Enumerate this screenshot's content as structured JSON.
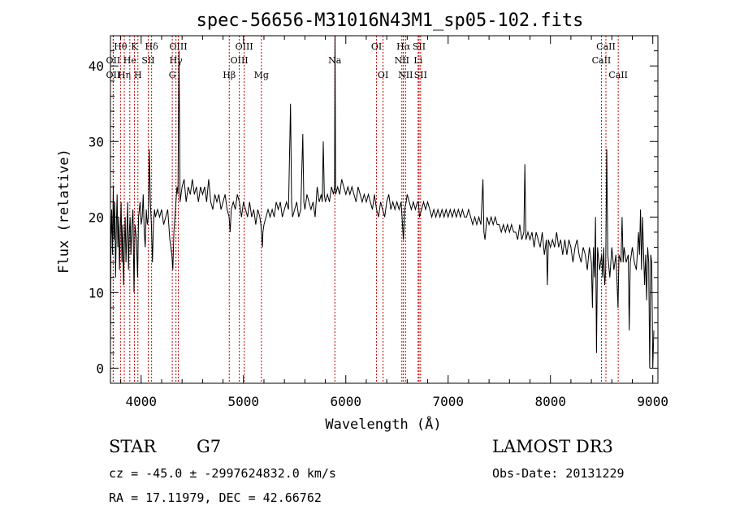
{
  "chart_data": {
    "type": "line",
    "title": "spec-56656-M31016N43M1_sp05-102.fits",
    "xlabel": "Wavelength (Å)",
    "ylabel": "Flux (relative)",
    "xlim": [
      3700,
      9050
    ],
    "ylim": [
      -2,
      44
    ],
    "xticks": [
      4000,
      5000,
      6000,
      7000,
      8000,
      9000
    ],
    "yticks": [
      0,
      10,
      20,
      30,
      40
    ],
    "grid": false,
    "spectrum": [
      [
        3700,
        2
      ],
      [
        3705,
        17
      ],
      [
        3712,
        21
      ],
      [
        3720,
        15
      ],
      [
        3728,
        24
      ],
      [
        3735,
        17
      ],
      [
        3742,
        22
      ],
      [
        3750,
        12
      ],
      [
        3758,
        19
      ],
      [
        3765,
        23
      ],
      [
        3772,
        16
      ],
      [
        3780,
        20
      ],
      [
        3788,
        13
      ],
      [
        3796,
        18
      ],
      [
        3804,
        22
      ],
      [
        3812,
        14
      ],
      [
        3820,
        19
      ],
      [
        3828,
        11
      ],
      [
        3836,
        16
      ],
      [
        3844,
        20
      ],
      [
        3852,
        14
      ],
      [
        3860,
        18
      ],
      [
        3868,
        22
      ],
      [
        3876,
        13
      ],
      [
        3884,
        18
      ],
      [
        3892,
        20
      ],
      [
        3900,
        15
      ],
      [
        3910,
        19
      ],
      [
        3920,
        21
      ],
      [
        3930,
        10
      ],
      [
        3940,
        19
      ],
      [
        3955,
        17
      ],
      [
        3965,
        12
      ],
      [
        3975,
        20
      ],
      [
        3990,
        22
      ],
      [
        4000,
        19
      ],
      [
        4010,
        20
      ],
      [
        4020,
        23
      ],
      [
        4030,
        18
      ],
      [
        4040,
        16
      ],
      [
        4050,
        21
      ],
      [
        4060,
        19
      ],
      [
        4070,
        20
      ],
      [
        4080,
        29
      ],
      [
        4090,
        22
      ],
      [
        4100,
        19
      ],
      [
        4110,
        14
      ],
      [
        4120,
        19
      ],
      [
        4130,
        21
      ],
      [
        4140,
        20
      ],
      [
        4160,
        21
      ],
      [
        4180,
        20
      ],
      [
        4200,
        21
      ],
      [
        4220,
        19
      ],
      [
        4240,
        20
      ],
      [
        4260,
        21
      ],
      [
        4280,
        17
      ],
      [
        4300,
        15
      ],
      [
        4310,
        13
      ],
      [
        4320,
        18
      ],
      [
        4330,
        20
      ],
      [
        4340,
        22
      ],
      [
        4350,
        24
      ],
      [
        4360,
        23
      ],
      [
        4370,
        42
      ],
      [
        4380,
        22
      ],
      [
        4400,
        24
      ],
      [
        4420,
        25
      ],
      [
        4440,
        22
      ],
      [
        4460,
        24
      ],
      [
        4480,
        23
      ],
      [
        4500,
        25
      ],
      [
        4520,
        23
      ],
      [
        4540,
        24
      ],
      [
        4560,
        22
      ],
      [
        4580,
        24
      ],
      [
        4600,
        23
      ],
      [
        4620,
        24
      ],
      [
        4640,
        22
      ],
      [
        4660,
        25
      ],
      [
        4680,
        22
      ],
      [
        4700,
        21
      ],
      [
        4720,
        23
      ],
      [
        4740,
        22
      ],
      [
        4760,
        23
      ],
      [
        4780,
        21
      ],
      [
        4800,
        22
      ],
      [
        4820,
        23
      ],
      [
        4840,
        21
      ],
      [
        4860,
        20
      ],
      [
        4870,
        18
      ],
      [
        4880,
        21
      ],
      [
        4900,
        22
      ],
      [
        4920,
        21
      ],
      [
        4940,
        23
      ],
      [
        4960,
        22
      ],
      [
        4980,
        20
      ],
      [
        5000,
        22
      ],
      [
        5020,
        21
      ],
      [
        5040,
        20
      ],
      [
        5060,
        22
      ],
      [
        5080,
        20
      ],
      [
        5100,
        21
      ],
      [
        5120,
        19
      ],
      [
        5140,
        21
      ],
      [
        5160,
        20
      ],
      [
        5170,
        19
      ],
      [
        5180,
        17
      ],
      [
        5185,
        16
      ],
      [
        5190,
        18
      ],
      [
        5200,
        19
      ],
      [
        5220,
        20
      ],
      [
        5240,
        21
      ],
      [
        5260,
        20
      ],
      [
        5280,
        21
      ],
      [
        5300,
        20
      ],
      [
        5320,
        22
      ],
      [
        5340,
        21
      ],
      [
        5360,
        22
      ],
      [
        5380,
        20
      ],
      [
        5400,
        21
      ],
      [
        5420,
        22
      ],
      [
        5440,
        21
      ],
      [
        5460,
        35
      ],
      [
        5470,
        22
      ],
      [
        5480,
        20
      ],
      [
        5500,
        21
      ],
      [
        5520,
        22
      ],
      [
        5540,
        20
      ],
      [
        5560,
        21
      ],
      [
        5580,
        31
      ],
      [
        5590,
        22
      ],
      [
        5600,
        21
      ],
      [
        5620,
        23
      ],
      [
        5640,
        22
      ],
      [
        5660,
        21
      ],
      [
        5680,
        22
      ],
      [
        5700,
        20
      ],
      [
        5720,
        24
      ],
      [
        5740,
        22
      ],
      [
        5760,
        23
      ],
      [
        5770,
        22
      ],
      [
        5780,
        30
      ],
      [
        5790,
        23
      ],
      [
        5800,
        22
      ],
      [
        5820,
        23
      ],
      [
        5840,
        22
      ],
      [
        5860,
        24
      ],
      [
        5880,
        23
      ],
      [
        5890,
        24
      ],
      [
        5895,
        44
      ],
      [
        5900,
        23
      ],
      [
        5920,
        24
      ],
      [
        5940,
        23
      ],
      [
        5960,
        25
      ],
      [
        5980,
        24
      ],
      [
        6000,
        23
      ],
      [
        6020,
        24
      ],
      [
        6040,
        23
      ],
      [
        6060,
        24
      ],
      [
        6080,
        23
      ],
      [
        6100,
        22
      ],
      [
        6120,
        24
      ],
      [
        6140,
        23
      ],
      [
        6160,
        22
      ],
      [
        6180,
        23
      ],
      [
        6200,
        22
      ],
      [
        6220,
        23
      ],
      [
        6240,
        22
      ],
      [
        6260,
        21
      ],
      [
        6280,
        23
      ],
      [
        6300,
        21
      ],
      [
        6320,
        20
      ],
      [
        6340,
        22
      ],
      [
        6360,
        21
      ],
      [
        6380,
        20
      ],
      [
        6400,
        22
      ],
      [
        6420,
        23
      ],
      [
        6440,
        21
      ],
      [
        6460,
        22
      ],
      [
        6480,
        21
      ],
      [
        6500,
        22
      ],
      [
        6520,
        21
      ],
      [
        6540,
        22
      ],
      [
        6550,
        20
      ],
      [
        6563,
        17
      ],
      [
        6575,
        21
      ],
      [
        6590,
        22
      ],
      [
        6600,
        23
      ],
      [
        6620,
        22
      ],
      [
        6640,
        21
      ],
      [
        6660,
        22
      ],
      [
        6680,
        21
      ],
      [
        6700,
        22
      ],
      [
        6710,
        22
      ],
      [
        6720,
        20
      ],
      [
        6740,
        21
      ],
      [
        6760,
        22
      ],
      [
        6780,
        21
      ],
      [
        6800,
        22
      ],
      [
        6820,
        21
      ],
      [
        6840,
        20
      ],
      [
        6860,
        21
      ],
      [
        6880,
        20
      ],
      [
        6900,
        21
      ],
      [
        6920,
        20
      ],
      [
        6940,
        21
      ],
      [
        6960,
        20
      ],
      [
        6980,
        21
      ],
      [
        7000,
        20
      ],
      [
        7020,
        21
      ],
      [
        7040,
        20
      ],
      [
        7060,
        21
      ],
      [
        7080,
        20
      ],
      [
        7100,
        21
      ],
      [
        7120,
        20
      ],
      [
        7140,
        21
      ],
      [
        7160,
        20
      ],
      [
        7180,
        20
      ],
      [
        7200,
        21
      ],
      [
        7220,
        20
      ],
      [
        7240,
        19
      ],
      [
        7260,
        20
      ],
      [
        7280,
        19
      ],
      [
        7300,
        20
      ],
      [
        7320,
        19
      ],
      [
        7340,
        25
      ],
      [
        7350,
        18
      ],
      [
        7360,
        17
      ],
      [
        7380,
        20
      ],
      [
        7400,
        19
      ],
      [
        7420,
        20
      ],
      [
        7440,
        19
      ],
      [
        7460,
        20
      ],
      [
        7480,
        19
      ],
      [
        7500,
        19
      ],
      [
        7520,
        18
      ],
      [
        7540,
        19
      ],
      [
        7560,
        18
      ],
      [
        7580,
        19
      ],
      [
        7600,
        18
      ],
      [
        7620,
        19
      ],
      [
        7640,
        18
      ],
      [
        7660,
        18
      ],
      [
        7680,
        17
      ],
      [
        7700,
        19
      ],
      [
        7720,
        17
      ],
      [
        7740,
        18
      ],
      [
        7750,
        27
      ],
      [
        7760,
        17
      ],
      [
        7780,
        18
      ],
      [
        7800,
        17
      ],
      [
        7820,
        18
      ],
      [
        7840,
        16
      ],
      [
        7860,
        18
      ],
      [
        7880,
        17
      ],
      [
        7900,
        16
      ],
      [
        7920,
        18
      ],
      [
        7940,
        15
      ],
      [
        7960,
        17
      ],
      [
        7970,
        11
      ],
      [
        7980,
        17
      ],
      [
        8000,
        16
      ],
      [
        8020,
        17
      ],
      [
        8040,
        16
      ],
      [
        8060,
        18
      ],
      [
        8080,
        16
      ],
      [
        8100,
        17
      ],
      [
        8120,
        15
      ],
      [
        8140,
        17
      ],
      [
        8160,
        15
      ],
      [
        8180,
        17
      ],
      [
        8200,
        16
      ],
      [
        8220,
        14
      ],
      [
        8240,
        16
      ],
      [
        8260,
        17
      ],
      [
        8280,
        15
      ],
      [
        8300,
        14
      ],
      [
        8320,
        16
      ],
      [
        8340,
        15
      ],
      [
        8360,
        13
      ],
      [
        8380,
        16
      ],
      [
        8400,
        14
      ],
      [
        8410,
        8
      ],
      [
        8420,
        16
      ],
      [
        8430,
        12
      ],
      [
        8440,
        20
      ],
      [
        8450,
        2
      ],
      [
        8460,
        16
      ],
      [
        8480,
        13
      ],
      [
        8500,
        15
      ],
      [
        8510,
        12
      ],
      [
        8520,
        16
      ],
      [
        8530,
        11
      ],
      [
        8540,
        13
      ],
      [
        8550,
        29
      ],
      [
        8560,
        15
      ],
      [
        8580,
        12
      ],
      [
        8600,
        16
      ],
      [
        8620,
        13
      ],
      [
        8640,
        15
      ],
      [
        8660,
        8
      ],
      [
        8670,
        15
      ],
      [
        8690,
        14
      ],
      [
        8700,
        20
      ],
      [
        8710,
        14
      ],
      [
        8720,
        16
      ],
      [
        8740,
        14
      ],
      [
        8760,
        15
      ],
      [
        8770,
        5
      ],
      [
        8780,
        14
      ],
      [
        8800,
        16
      ],
      [
        8820,
        14
      ],
      [
        8840,
        13
      ],
      [
        8860,
        18
      ],
      [
        8870,
        15
      ],
      [
        8880,
        21
      ],
      [
        8890,
        13
      ],
      [
        8900,
        20
      ],
      [
        8910,
        15
      ],
      [
        8920,
        11
      ],
      [
        8930,
        15
      ],
      [
        8940,
        9
      ],
      [
        8950,
        16
      ],
      [
        8960,
        14
      ],
      [
        8970,
        0
      ],
      [
        8980,
        15
      ],
      [
        8990,
        14
      ],
      [
        9000,
        0
      ],
      [
        9010,
        5
      ]
    ],
    "lines_top": [
      {
        "label": "Hδ",
        "x": 4102,
        "row": 1
      },
      {
        "label": "OII",
        "x": 3727,
        "row": 2
      },
      {
        "label": "OIII",
        "x": 4363,
        "row": 1
      },
      {
        "label": "Hγ",
        "x": 4340,
        "row": 2
      },
      {
        "label": "OIII",
        "x": 5007,
        "row": 1
      },
      {
        "label": "OIII",
        "x": 4959,
        "row": 2
      },
      {
        "label": "OI",
        "x": 6300,
        "row": 1
      },
      {
        "label": "OI",
        "x": 6364,
        "row": 3
      },
      {
        "label": "Hα",
        "x": 6563,
        "row": 1
      },
      {
        "label": "NII",
        "x": 6548,
        "row": 2
      },
      {
        "label": "NII",
        "x": 6584,
        "row": 3
      },
      {
        "label": "SII",
        "x": 6716,
        "row": 1
      },
      {
        "label": "SII",
        "x": 6731,
        "row": 3
      },
      {
        "label": "Li",
        "x": 6707,
        "row": 2
      }
    ],
    "lines_absorption": [
      {
        "label": "Hθ",
        "x": 3798,
        "row": 1
      },
      {
        "label": "OII",
        "x": 3727,
        "row": 3
      },
      {
        "label": "Hη",
        "x": 3835,
        "row": 3
      },
      {
        "label": "He",
        "x": 3889,
        "row": 2
      },
      {
        "label": "K",
        "x": 3934,
        "row": 1
      },
      {
        "label": "SII",
        "x": 4069,
        "row": 2
      },
      {
        "label": "H",
        "x": 3968,
        "row": 3
      },
      {
        "label": "G",
        "x": 4304,
        "row": 3
      },
      {
        "label": "Hβ",
        "x": 4861,
        "row": 3
      },
      {
        "label": "Mg",
        "x": 5175,
        "row": 3
      },
      {
        "label": "Na",
        "x": 5893,
        "row": 2
      },
      {
        "label": "CaII",
        "x": 8542,
        "row": 1
      },
      {
        "label": "CaII",
        "x": 8498,
        "row": 2
      },
      {
        "label": "CaII",
        "x": 8662,
        "row": 3
      }
    ]
  },
  "info": {
    "object_class": "STAR",
    "subclass": "G7",
    "survey": "LAMOST DR3",
    "cz": "cz = -45.0 ± -2997624832.0 km/s",
    "obs_date": "Obs-Date: 20131229",
    "coords": "RA =  17.11979, DEC =  42.66762"
  },
  "colors": {
    "spectrum": "#000000",
    "line_marker": "#cc0000",
    "axes": "#000000"
  }
}
